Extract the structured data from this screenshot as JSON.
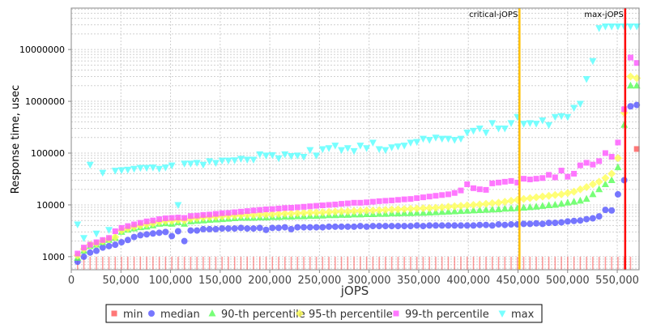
{
  "chart_data": {
    "type": "scatter",
    "xlabel": "jOPS",
    "ylabel": "Response time, usec",
    "xlim": [
      0,
      572000
    ],
    "ylim": [
      560,
      63000000
    ],
    "yscale": "log",
    "grid": true,
    "legend_position": "bottom",
    "xticks": [
      0,
      50000,
      100000,
      150000,
      200000,
      250000,
      300000,
      350000,
      400000,
      450000,
      500000,
      550000
    ],
    "xtick_labels": [
      "0",
      "50,000",
      "100,000",
      "150,000",
      "200,000",
      "250,000",
      "300,000",
      "350,000",
      "400,000",
      "450,000",
      "500,000",
      "550,000"
    ],
    "yticks": [
      1000,
      10000,
      100000,
      1000000,
      10000000
    ],
    "ytick_labels": [
      "1000",
      "10000",
      "100000",
      "1000000",
      "10000000"
    ],
    "annotations": [
      {
        "label": "critical-jOPS",
        "x": 451500,
        "color": "#ffc000"
      },
      {
        "label": "max-jOPS",
        "x": 558000,
        "color": "#ff0000"
      }
    ],
    "x_step": 6330,
    "series": [
      {
        "name": "min",
        "color": "#ff5555",
        "marker": "square",
        "values": [
          1000,
          1000,
          1000,
          1000,
          1000,
          1000,
          1000,
          1000,
          1000,
          1000,
          1000,
          1000,
          1000,
          1000,
          1000,
          1000,
          1000,
          1000,
          1000,
          1000,
          1000,
          1000,
          1000,
          1000,
          1000,
          1000,
          1000,
          1000,
          1000,
          1000,
          1000,
          1000,
          1000,
          1000,
          1000,
          1000,
          1000,
          1000,
          1000,
          1000,
          1000,
          1000,
          1000,
          1000,
          1000,
          1000,
          1000,
          1000,
          1000,
          1000,
          1000,
          1000,
          1000,
          1000,
          1000,
          1000,
          1000,
          1000,
          1000,
          1000,
          1000,
          1000,
          1000,
          1000,
          1000,
          1000,
          1000,
          1000,
          1000,
          1000,
          1000,
          1000,
          1000,
          1000,
          1000,
          1000,
          1000,
          1000,
          1000,
          1000,
          1000,
          1000,
          1000,
          1000,
          1000,
          1000,
          1000,
          1000,
          1000,
          120000
        ]
      },
      {
        "name": "median",
        "color": "#5555ff",
        "marker": "circle",
        "values": [
          800,
          1000,
          1200,
          1300,
          1500,
          1600,
          1700,
          1900,
          2100,
          2400,
          2600,
          2700,
          2800,
          2900,
          3000,
          2500,
          3100,
          2000,
          3200,
          3200,
          3400,
          3400,
          3400,
          3500,
          3500,
          3500,
          3600,
          3500,
          3500,
          3600,
          3300,
          3600,
          3600,
          3700,
          3400,
          3700,
          3700,
          3700,
          3700,
          3700,
          3800,
          3800,
          3800,
          3800,
          3800,
          3900,
          3800,
          3900,
          3900,
          3900,
          3900,
          3900,
          3900,
          3900,
          4000,
          3900,
          4000,
          4000,
          4000,
          4000,
          4000,
          4000,
          4000,
          4000,
          4100,
          4100,
          4000,
          4200,
          4100,
          4200,
          4200,
          4300,
          4300,
          4400,
          4300,
          4500,
          4500,
          4600,
          4800,
          4900,
          5000,
          5300,
          5500,
          6000,
          8000,
          7800,
          16000,
          30000,
          800000,
          850000
        ]
      },
      {
        "name": "90-th percentile",
        "color": "#55ff55",
        "marker": "triangle",
        "values": [
          950,
          1300,
          1600,
          1700,
          1900,
          2100,
          2300,
          3000,
          3300,
          3500,
          3700,
          3800,
          4000,
          4300,
          4400,
          4300,
          4600,
          4300,
          4800,
          4900,
          5000,
          5100,
          5200,
          5300,
          5400,
          5500,
          5600,
          5600,
          5600,
          5700,
          5700,
          5800,
          5800,
          5900,
          5900,
          6000,
          6000,
          6100,
          6100,
          6200,
          6300,
          6300,
          6400,
          6400,
          6500,
          6500,
          6600,
          6600,
          6700,
          6700,
          6800,
          6800,
          6900,
          6900,
          7000,
          7000,
          7100,
          7200,
          7300,
          7400,
          7500,
          7600,
          7700,
          7800,
          7900,
          8000,
          8100,
          8200,
          8400,
          8500,
          8600,
          8800,
          9000,
          9200,
          9500,
          9800,
          10000,
          10500,
          11000,
          11500,
          12000,
          13000,
          16000,
          20000,
          25000,
          30000,
          53000,
          350000,
          2000000,
          2000000
        ]
      },
      {
        "name": "95-th percentile",
        "color": "#ffff55",
        "marker": "diamond",
        "values": [
          1050,
          1400,
          1700,
          1800,
          2000,
          2200,
          2400,
          3200,
          3500,
          3800,
          4000,
          4200,
          4400,
          4700,
          4900,
          4900,
          5100,
          5000,
          5400,
          5500,
          5700,
          5800,
          5900,
          6000,
          6100,
          6200,
          6300,
          6400,
          6400,
          6500,
          6500,
          6600,
          6700,
          6800,
          6800,
          6900,
          7000,
          7100,
          7100,
          7200,
          7300,
          7400,
          7500,
          7500,
          7600,
          7700,
          7800,
          7800,
          7900,
          8000,
          8100,
          8200,
          8300,
          8400,
          8500,
          8600,
          8700,
          8800,
          9000,
          9200,
          9400,
          9600,
          9800,
          10000,
          10200,
          10500,
          10800,
          11000,
          11500,
          12000,
          12500,
          13000,
          13500,
          14000,
          14500,
          15000,
          15500,
          16000,
          17000,
          18000,
          20000,
          22000,
          25000,
          28000,
          33000,
          40000,
          80000,
          600000,
          3000000,
          2800000
        ]
      },
      {
        "name": "99-th percentile",
        "color": "#ff55ff",
        "marker": "square",
        "values": [
          1150,
          1500,
          1700,
          1900,
          2100,
          2300,
          3100,
          3600,
          3900,
          4200,
          4500,
          4800,
          5000,
          5300,
          5500,
          5600,
          5700,
          5600,
          6100,
          6200,
          6400,
          6500,
          6700,
          6900,
          7000,
          7200,
          7400,
          7600,
          7800,
          8000,
          8200,
          8300,
          8500,
          8700,
          8800,
          9000,
          9200,
          9400,
          9600,
          9800,
          10000,
          10200,
          10500,
          10700,
          11000,
          11000,
          11200,
          11500,
          11800,
          12000,
          12200,
          12500,
          12800,
          13000,
          13500,
          14000,
          14500,
          15000,
          15500,
          16000,
          17000,
          19000,
          25000,
          21000,
          20000,
          19500,
          26000,
          27000,
          28000,
          29000,
          27000,
          32000,
          31000,
          32000,
          33000,
          38000,
          34000,
          46000,
          35000,
          40000,
          58000,
          65000,
          60000,
          70000,
          100000,
          85000,
          160000,
          700000,
          7000000,
          5500000
        ]
      },
      {
        "name": "max",
        "color": "#55ffff",
        "marker": "triangle-down",
        "values": [
          4200,
          2300,
          60000,
          2800,
          42000,
          3300,
          46000,
          47000,
          48000,
          50000,
          52000,
          52000,
          53000,
          50000,
          53000,
          58000,
          10000,
          63000,
          63000,
          65000,
          60000,
          70000,
          65000,
          72000,
          72000,
          73000,
          78000,
          75000,
          75000,
          95000,
          90000,
          92000,
          80000,
          95000,
          88000,
          90000,
          85000,
          115000,
          90000,
          120000,
          125000,
          140000,
          115000,
          125000,
          110000,
          140000,
          125000,
          160000,
          120000,
          115000,
          130000,
          135000,
          140000,
          160000,
          165000,
          190000,
          180000,
          200000,
          190000,
          190000,
          180000,
          190000,
          250000,
          270000,
          300000,
          250000,
          380000,
          300000,
          300000,
          380000,
          500000,
          370000,
          380000,
          370000,
          430000,
          350000,
          500000,
          520000,
          500000,
          750000,
          900000,
          2700000,
          6000000,
          26000000,
          28000000,
          28000000,
          28000000,
          28000000,
          28000000,
          28000000
        ]
      }
    ]
  }
}
